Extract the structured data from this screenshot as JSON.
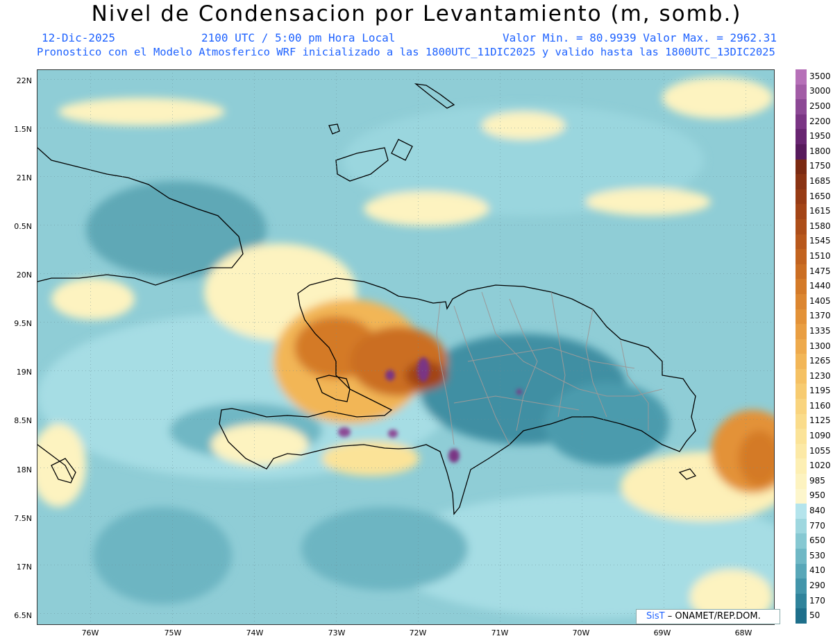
{
  "title": "Nivel de Condensacion por Levantamiento (m, somb.)",
  "subtitle": {
    "date": "12-Dic-2025",
    "time": "2100 UTC / 5:00 pm Hora Local",
    "range": "Valor Min. = 80.9939  Valor Max. = 2962.31",
    "model": "Pronostico con el Modelo Atmosferico WRF inicializado a las 1800UTC_11DIC2025 y valido hasta las  1800UTC_13DIC2025"
  },
  "y_axis_labels": [
    "22N",
    "1.5N",
    "21N",
    "0.5N",
    "20N",
    "9.5N",
    "19N",
    "8.5N",
    "18N",
    "7.5N",
    "17N",
    "6.5N"
  ],
  "x_axis_labels": [
    "76W",
    "75W",
    "74W",
    "73W",
    "72W",
    "71W",
    "70W",
    "69W",
    "68W"
  ],
  "colorbar": {
    "labels": [
      "3500",
      "3000",
      "2500",
      "2200",
      "1950",
      "1800",
      "1750",
      "1685",
      "1650",
      "1615",
      "1580",
      "1545",
      "1510",
      "1475",
      "1440",
      "1405",
      "1370",
      "1335",
      "1300",
      "1265",
      "1230",
      "1195",
      "1160",
      "1125",
      "1090",
      "1055",
      "1020",
      "985",
      "950",
      "840",
      "770",
      "650",
      "530",
      "410",
      "290",
      "170",
      "50"
    ],
    "colors": [
      "#b670b8",
      "#a25ca6",
      "#8c4895",
      "#7a3584",
      "#682571",
      "#571a5c",
      "#7b2a12",
      "#8a3313",
      "#973b14",
      "#a34416",
      "#ad4e19",
      "#b8581c",
      "#c2631f",
      "#cb6e23",
      "#d47a28",
      "#dc8630",
      "#e39238",
      "#e99e42",
      "#eeaa4c",
      "#f2b657",
      "#f5c163",
      "#f7cb70",
      "#f9d47e",
      "#fadc8b",
      "#fbe398",
      "#fce9a6",
      "#fdefb3",
      "#fdf3c0",
      "#fdf6cc",
      "#b4e4ec",
      "#9ed7df",
      "#86c8d2",
      "#6fb8c5",
      "#58a7b8",
      "#4295aa",
      "#2f839b",
      "#1e6f8b"
    ]
  },
  "credit": {
    "logo": "SisT",
    "text": "ONAMET/REP.DOM."
  }
}
